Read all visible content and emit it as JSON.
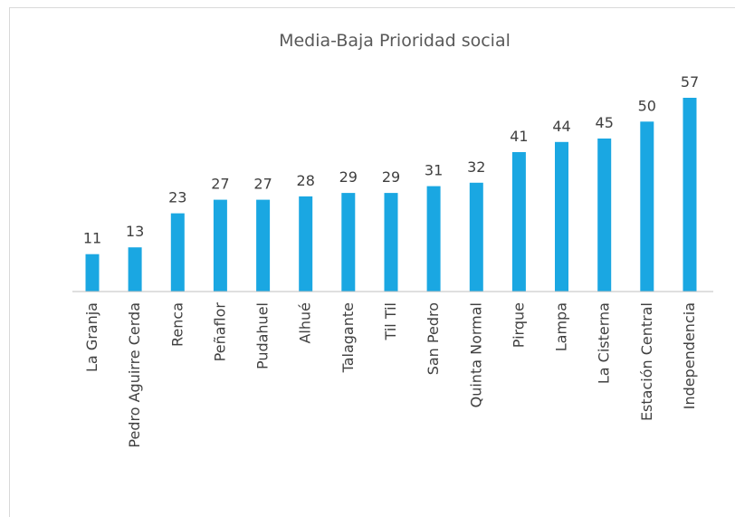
{
  "chart_data": {
    "type": "bar",
    "title": "Media-Baja Prioridad social",
    "xlabel": "",
    "ylabel": "",
    "categories": [
      "La Granja",
      "Pedro Aguirre Cerda",
      "Renca",
      "Peñaflor",
      "Pudahuel",
      "Alhué",
      "Talagante",
      "Til Til",
      "San Pedro",
      "Quinta Normal",
      "Pirque",
      "Lampa",
      "La Cisterna",
      "Estación Central",
      "Independencia"
    ],
    "values": [
      11,
      13,
      23,
      27,
      27,
      28,
      29,
      29,
      31,
      32,
      41,
      44,
      45,
      50,
      57
    ],
    "ylim": [
      0,
      57
    ],
    "grid": false,
    "legend": "none",
    "colors": {
      "bar": "#1aa7e2",
      "axis": "#bfbfbf",
      "text": "#404040",
      "title": "#595959"
    }
  }
}
